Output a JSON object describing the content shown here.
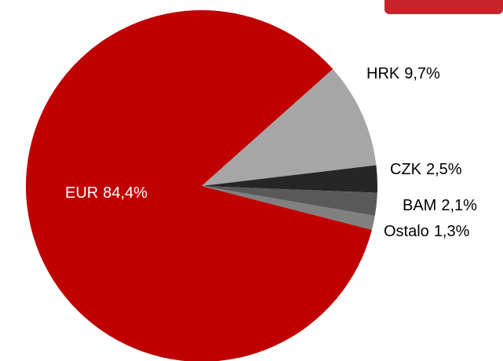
{
  "chart_data": {
    "type": "pie",
    "categories": [
      "EUR",
      "HRK",
      "CZK",
      "BAM",
      "Ostalo"
    ],
    "values": [
      84.4,
      9.7,
      2.5,
      2.1,
      1.3
    ],
    "value_labels": [
      "84,4%",
      "9,7%",
      "2,5%",
      "2,1%",
      "1,3%"
    ],
    "colors": [
      "#c00000",
      "#a6a6a6",
      "#262626",
      "#595959",
      "#808080"
    ]
  }
}
